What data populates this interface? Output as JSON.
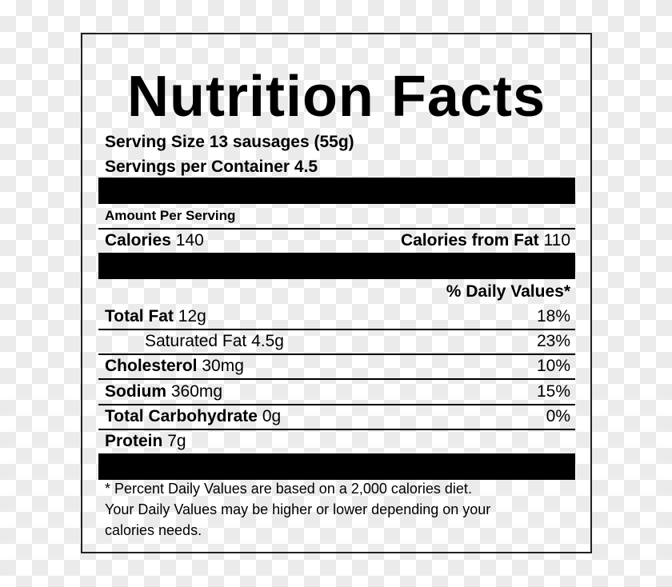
{
  "title": "Nutrition Facts",
  "serving_size": "Serving Size 13 sausages (55g)",
  "servings_per_container": "Servings per Container 4.5",
  "amount_per_serving": "Amount Per Serving",
  "calories": {
    "label": "Calories",
    "value": "140"
  },
  "calories_from_fat": {
    "label": "Calories from Fat",
    "value": "110"
  },
  "daily_values_header": "% Daily Values*",
  "nutrients": [
    {
      "label": "Total Fat",
      "amount": "12g",
      "dv": "18%",
      "indent": false
    },
    {
      "label": "Saturated Fat",
      "amount": "4.5g",
      "dv": "23%",
      "indent": true
    },
    {
      "label": "Cholesterol",
      "amount": "30mg",
      "dv": "10%",
      "indent": false
    },
    {
      "label": "Sodium",
      "amount": "360mg",
      "dv": "15%",
      "indent": false
    },
    {
      "label": "Total Carbohydrate",
      "amount": "0g",
      "dv": "0%",
      "indent": false
    },
    {
      "label": "Protein",
      "amount": "7g",
      "dv": "",
      "indent": false
    }
  ],
  "footnote": [
    "* Percent Daily Values are based on a 2,000 calories diet.",
    "Your Daily Values may be higher or lower depending on your",
    "calories needs."
  ]
}
